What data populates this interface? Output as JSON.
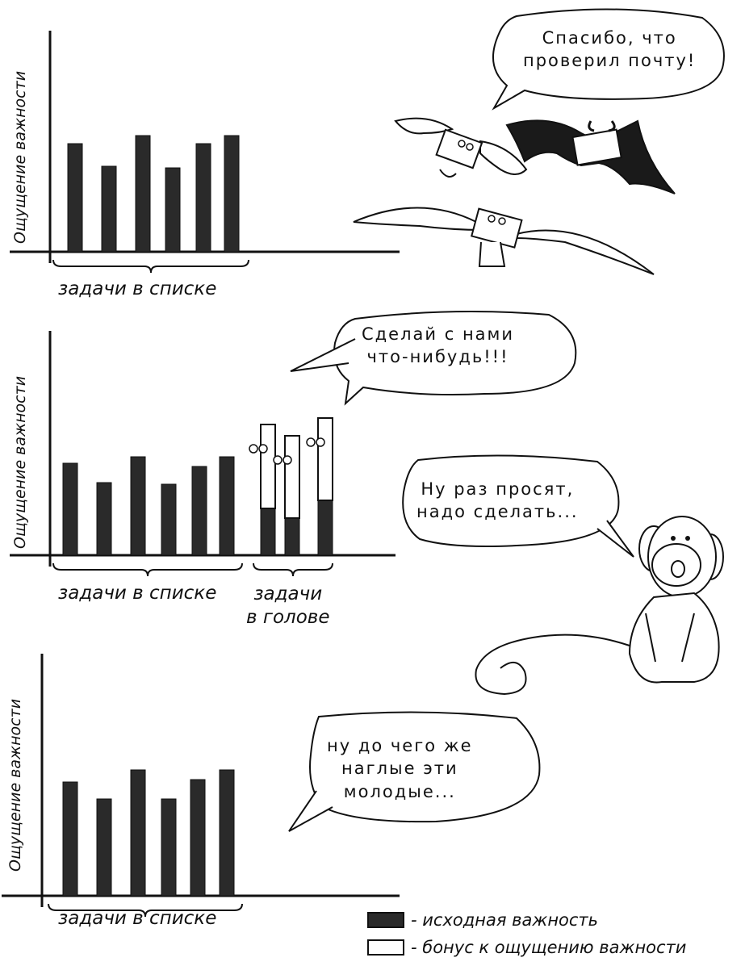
{
  "legend": {
    "base_label": "- исходная важность",
    "bonus_label": "- бонус к ощущению важности",
    "colors": {
      "base": "#2a2a2a",
      "bonus": "#ffffff"
    }
  },
  "chart_data": [
    {
      "type": "bar",
      "ylabel": "Ощущение важности",
      "xlabel": "",
      "group_labels": [
        "задачи в списке"
      ],
      "series": [
        {
          "values": [
            0.67,
            0.53,
            0.72,
            0.52,
            0.67,
            0.72
          ]
        }
      ],
      "speech": [
        "Спасибо, что",
        "проверил почту!"
      ]
    },
    {
      "type": "bar",
      "stacked": true,
      "ylabel": "Ощущение важности",
      "xlabel": "",
      "group_labels": [
        "задачи в списке",
        "задачи\nв голове"
      ],
      "series": [
        {
          "values": [
            0.57,
            0.45,
            0.61,
            0.44,
            0.55,
            0.61,
            0.29,
            0.23,
            0.34
          ]
        },
        {
          "values": [
            0,
            0,
            0,
            0,
            0,
            0,
            0.52,
            0.51,
            0.51
          ]
        }
      ],
      "speech": [
        "Сделай с нами",
        "что-нибудь!!!"
      ],
      "speech2": [
        "Ну раз просят,",
        "надо сделать..."
      ]
    },
    {
      "type": "bar",
      "ylabel": "Ощущение важности",
      "xlabel": "",
      "group_labels": [
        "задачи в списке"
      ],
      "series": [
        {
          "values": [
            0.47,
            0.4,
            0.52,
            0.4,
            0.48,
            0.52
          ]
        }
      ],
      "speech": [
        "ну до чего же",
        "наглые эти",
        "молодые..."
      ]
    }
  ]
}
